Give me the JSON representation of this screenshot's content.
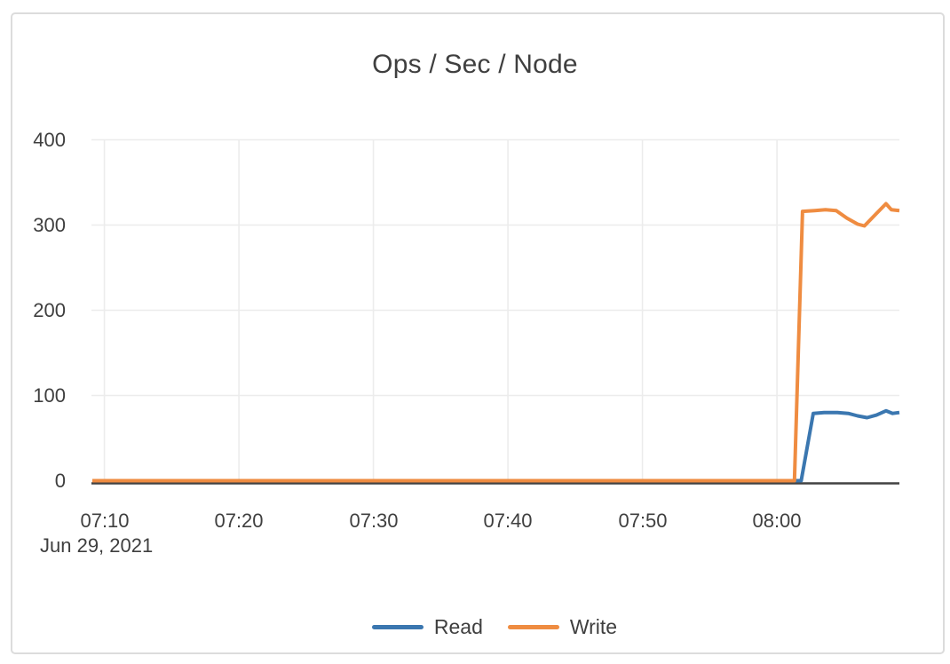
{
  "chart_data": {
    "type": "line",
    "title": "Ops / Sec / Node",
    "xlabel": "",
    "ylabel": "",
    "grid": true,
    "x_axis": {
      "kind": "time",
      "date_label": "Jun 29, 2021",
      "tick_labels": [
        "07:10",
        "07:20",
        "07:30",
        "07:40",
        "07:50",
        "08:00"
      ],
      "tick_minutes": [
        10,
        20,
        30,
        40,
        50,
        60
      ],
      "domain_minutes": [
        9.1,
        69.1
      ]
    },
    "y_axis": {
      "tick_labels": [
        "0",
        "100",
        "200",
        "300",
        "400"
      ],
      "tick_values": [
        0,
        100,
        200,
        300,
        400
      ],
      "range": [
        0,
        400
      ]
    },
    "legend": {
      "position": "bottom",
      "items": [
        {
          "label": "Read",
          "color": "#3b77b0"
        },
        {
          "label": "Write",
          "color": "#ef8c41"
        }
      ]
    },
    "series": [
      {
        "name": "Read",
        "color": "#3b77b0",
        "points": [
          [
            9.1,
            0
          ],
          [
            15,
            0
          ],
          [
            20,
            0
          ],
          [
            25,
            0
          ],
          [
            30,
            0
          ],
          [
            35,
            0
          ],
          [
            40,
            0
          ],
          [
            45,
            0
          ],
          [
            50,
            0
          ],
          [
            55,
            0
          ],
          [
            60,
            0
          ],
          [
            61.8,
            0
          ],
          [
            62.7,
            79
          ],
          [
            63.5,
            80
          ],
          [
            64.5,
            80
          ],
          [
            65.3,
            79
          ],
          [
            66.0,
            76
          ],
          [
            66.7,
            74
          ],
          [
            67.4,
            77
          ],
          [
            68.1,
            82
          ],
          [
            68.6,
            79
          ],
          [
            69.1,
            80
          ]
        ]
      },
      {
        "name": "Write",
        "color": "#ef8c41",
        "points": [
          [
            9.1,
            0
          ],
          [
            15,
            0
          ],
          [
            20,
            0
          ],
          [
            25,
            0
          ],
          [
            30,
            0
          ],
          [
            35,
            0
          ],
          [
            40,
            0
          ],
          [
            45,
            0
          ],
          [
            50,
            0
          ],
          [
            55,
            0
          ],
          [
            60,
            0
          ],
          [
            61.3,
            0
          ],
          [
            61.9,
            316
          ],
          [
            62.8,
            317
          ],
          [
            63.6,
            318
          ],
          [
            64.4,
            317
          ],
          [
            65.2,
            308
          ],
          [
            66.0,
            301
          ],
          [
            66.5,
            299
          ],
          [
            67.3,
            312
          ],
          [
            68.1,
            325
          ],
          [
            68.5,
            318
          ],
          [
            69.1,
            317
          ]
        ]
      }
    ],
    "theme": {
      "text_color": "#3f3f3f",
      "grid_color": "#ececec",
      "axis_line_color": "#424242",
      "card_border_color": "#dcdcdc",
      "background": "#ffffff"
    }
  }
}
